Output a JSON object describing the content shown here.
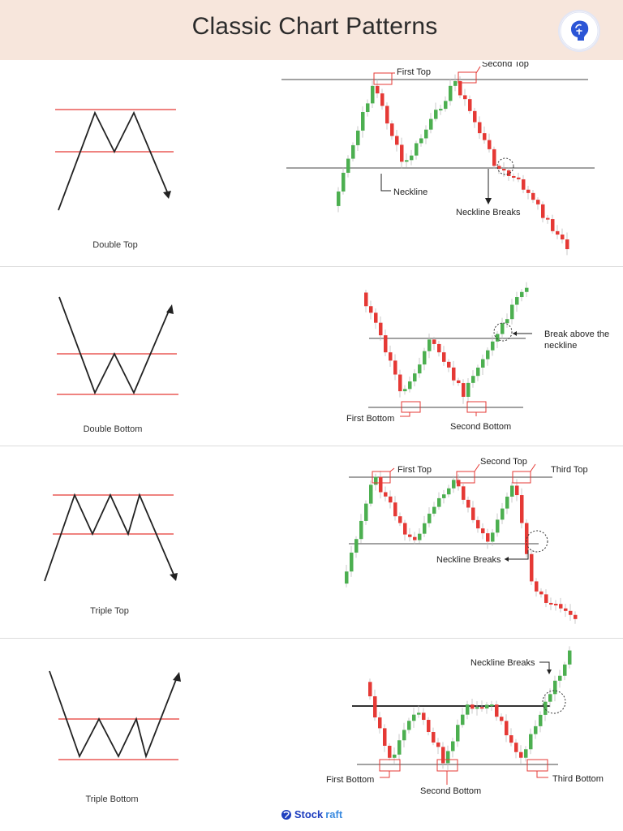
{
  "header": {
    "title": "Classic Chart Patterns",
    "logo_icon": "brain-bulb-icon"
  },
  "footer": {
    "brand_left": "Stock",
    "brand_right": "raft",
    "logo_icon": "brand-mark-icon"
  },
  "colors": {
    "up": "#4caf50",
    "down": "#e53935",
    "level": "#e53935",
    "line": "#222222",
    "box": "#e53935"
  },
  "patterns": [
    {
      "label": "Double Top",
      "annotations": {
        "first": "First Top",
        "second": "Second Top",
        "neckline": "Neckline",
        "breaks": "Neckline Breaks"
      }
    },
    {
      "label": "Double Bottom",
      "annotations": {
        "first": "First Bottom",
        "second": "Second Bottom",
        "break_line1": "Break above the",
        "break_line2": "neckline"
      }
    },
    {
      "label": "Triple Top",
      "annotations": {
        "first": "First Top",
        "second": "Second Top",
        "third": "Third Top",
        "breaks": "Neckline Breaks"
      }
    },
    {
      "label": "Triple Bottom",
      "annotations": {
        "first": "First Bottom",
        "second": "Second Bottom",
        "third": "Third Bottom",
        "breaks": "Neckline Breaks"
      }
    }
  ]
}
